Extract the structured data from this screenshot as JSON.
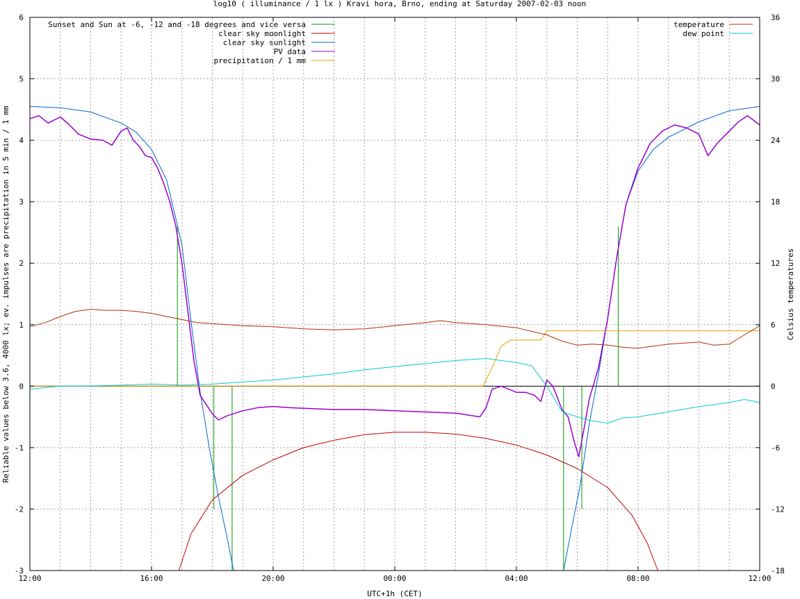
{
  "chart_data": {
    "type": "line",
    "title": "log10 ( illuminance / 1 lx ) Kravi hora, Brno, ending at Saturday 2007-02-03 noon",
    "xlabel": "UTC+1h (CET)",
    "ylabel": "Reliable values below 3.6, 4000 lx; ev. impulses are precipitation in 5 min / 1 mm",
    "y2label": "Celsius temperatures",
    "x_unit": "hours",
    "xlim": [
      12,
      36
    ],
    "ylim": [
      -3,
      6
    ],
    "y2lim": [
      -18,
      36
    ],
    "x_ticks": [
      {
        "x": 12,
        "label": "12:00"
      },
      {
        "x": 16,
        "label": "16:00"
      },
      {
        "x": 20,
        "label": "20:00"
      },
      {
        "x": 24,
        "label": "00:00"
      },
      {
        "x": 28,
        "label": "04:00"
      },
      {
        "x": 32,
        "label": "08:00"
      },
      {
        "x": 36,
        "label": "12:00"
      }
    ],
    "y_ticks": [
      -3,
      -2,
      -1,
      0,
      1,
      2,
      3,
      4,
      5,
      6
    ],
    "y2_ticks": [
      -18,
      -12,
      -6,
      0,
      6,
      12,
      18,
      24,
      30,
      36
    ],
    "grid": true,
    "legend_left": "top-left",
    "legend_right": "top-right",
    "series": [
      {
        "name": "Sunset and Sun at -6, -12 and -18 degrees and vice versa",
        "color": "#009900",
        "kind": "impulse",
        "axis": "y",
        "points": [
          [
            16.85,
            2.6
          ],
          [
            18.05,
            -2.0
          ],
          [
            18.65,
            -3.0
          ],
          [
            29.55,
            -3.0
          ],
          [
            30.15,
            -2.0
          ],
          [
            30.75,
            0.0
          ],
          [
            31.35,
            2.6
          ]
        ]
      },
      {
        "name": "clear sky moonlight",
        "color": "#c00000",
        "axis": "y",
        "points": [
          [
            16.9,
            -3.0
          ],
          [
            17.3,
            -2.4
          ],
          [
            18.0,
            -1.85
          ],
          [
            19.0,
            -1.45
          ],
          [
            20.0,
            -1.2
          ],
          [
            21.0,
            -1.0
          ],
          [
            22.0,
            -0.88
          ],
          [
            23.0,
            -0.79
          ],
          [
            24.0,
            -0.75
          ],
          [
            25.0,
            -0.75
          ],
          [
            26.0,
            -0.78
          ],
          [
            27.0,
            -0.85
          ],
          [
            28.0,
            -0.96
          ],
          [
            29.0,
            -1.12
          ],
          [
            30.0,
            -1.34
          ],
          [
            31.0,
            -1.65
          ],
          [
            31.8,
            -2.1
          ],
          [
            32.3,
            -2.55
          ],
          [
            32.65,
            -3.0
          ]
        ]
      },
      {
        "name": "clear sky sunlight",
        "color": "#0066cc",
        "axis": "y",
        "points": [
          [
            12.0,
            4.55
          ],
          [
            13.0,
            4.53
          ],
          [
            14.0,
            4.46
          ],
          [
            15.0,
            4.28
          ],
          [
            15.5,
            4.13
          ],
          [
            16.0,
            3.85
          ],
          [
            16.5,
            3.35
          ],
          [
            17.0,
            2.3
          ],
          [
            17.3,
            1.05
          ],
          [
            17.6,
            -0.1
          ],
          [
            17.9,
            -1.0
          ],
          [
            18.2,
            -1.8
          ],
          [
            18.5,
            -2.5
          ],
          [
            18.7,
            -3.0
          ],
          [
            29.55,
            -3.0
          ],
          [
            29.8,
            -2.35
          ],
          [
            30.1,
            -1.6
          ],
          [
            30.4,
            -0.6
          ],
          [
            30.7,
            0.2
          ],
          [
            31.0,
            1.1
          ],
          [
            31.3,
            2.1
          ],
          [
            31.6,
            2.95
          ],
          [
            32.0,
            3.5
          ],
          [
            32.5,
            3.85
          ],
          [
            33.0,
            4.05
          ],
          [
            34.0,
            4.3
          ],
          [
            35.0,
            4.48
          ],
          [
            36.0,
            4.55
          ]
        ]
      },
      {
        "name": "PV data",
        "color": "#9900cc",
        "axis": "y",
        "points": [
          [
            12.0,
            4.35
          ],
          [
            12.3,
            4.4
          ],
          [
            12.6,
            4.28
          ],
          [
            13.0,
            4.38
          ],
          [
            13.3,
            4.25
          ],
          [
            13.6,
            4.1
          ],
          [
            14.0,
            4.02
          ],
          [
            14.4,
            4.0
          ],
          [
            14.7,
            3.92
          ],
          [
            15.0,
            4.15
          ],
          [
            15.2,
            4.2
          ],
          [
            15.4,
            4.0
          ],
          [
            15.6,
            3.9
          ],
          [
            15.8,
            3.75
          ],
          [
            16.0,
            3.72
          ],
          [
            16.2,
            3.55
          ],
          [
            16.4,
            3.3
          ],
          [
            16.6,
            3.0
          ],
          [
            16.8,
            2.6
          ],
          [
            17.0,
            2.0
          ],
          [
            17.2,
            1.2
          ],
          [
            17.4,
            0.4
          ],
          [
            17.6,
            -0.15
          ],
          [
            17.8,
            -0.3
          ],
          [
            18.0,
            -0.45
          ],
          [
            18.2,
            -0.55
          ],
          [
            18.5,
            -0.48
          ],
          [
            19.0,
            -0.4
          ],
          [
            19.5,
            -0.35
          ],
          [
            20.0,
            -0.33
          ],
          [
            20.5,
            -0.35
          ],
          [
            21.0,
            -0.36
          ],
          [
            22.0,
            -0.38
          ],
          [
            23.0,
            -0.38
          ],
          [
            24.0,
            -0.4
          ],
          [
            25.0,
            -0.42
          ],
          [
            26.0,
            -0.44
          ],
          [
            26.8,
            -0.5
          ],
          [
            27.0,
            -0.35
          ],
          [
            27.2,
            -0.05
          ],
          [
            27.5,
            0.0
          ],
          [
            28.0,
            -0.1
          ],
          [
            28.3,
            -0.1
          ],
          [
            28.6,
            -0.15
          ],
          [
            28.8,
            -0.25
          ],
          [
            29.0,
            0.1
          ],
          [
            29.2,
            0.0
          ],
          [
            29.5,
            -0.38
          ],
          [
            29.7,
            -0.5
          ],
          [
            29.9,
            -0.9
          ],
          [
            30.05,
            -1.15
          ],
          [
            30.2,
            -0.75
          ],
          [
            30.4,
            -0.2
          ],
          [
            30.7,
            0.3
          ],
          [
            31.0,
            1.1
          ],
          [
            31.3,
            2.1
          ],
          [
            31.6,
            2.95
          ],
          [
            32.0,
            3.55
          ],
          [
            32.4,
            3.95
          ],
          [
            32.8,
            4.15
          ],
          [
            33.2,
            4.25
          ],
          [
            33.6,
            4.2
          ],
          [
            34.0,
            4.1
          ],
          [
            34.3,
            3.75
          ],
          [
            34.6,
            3.95
          ],
          [
            35.0,
            4.15
          ],
          [
            35.3,
            4.3
          ],
          [
            35.6,
            4.4
          ],
          [
            36.0,
            4.25
          ]
        ]
      },
      {
        "name": "precipitation / 1 mm",
        "color": "#e6a000",
        "axis": "y",
        "points": [
          [
            12.0,
            0.0
          ],
          [
            26.9,
            0.0
          ],
          [
            27.2,
            0.3
          ],
          [
            27.5,
            0.65
          ],
          [
            27.8,
            0.75
          ],
          [
            28.8,
            0.75
          ],
          [
            29.0,
            0.9
          ],
          [
            36.0,
            0.9
          ]
        ]
      },
      {
        "name": "temperature",
        "color": "#b03000",
        "axis": "y2",
        "points": [
          [
            12.0,
            5.8
          ],
          [
            12.5,
            6.2
          ],
          [
            13.0,
            6.8
          ],
          [
            13.5,
            7.3
          ],
          [
            14.0,
            7.5
          ],
          [
            14.5,
            7.4
          ],
          [
            15.0,
            7.4
          ],
          [
            15.5,
            7.3
          ],
          [
            16.0,
            7.1
          ],
          [
            16.5,
            6.8
          ],
          [
            17.0,
            6.5
          ],
          [
            17.5,
            6.2
          ],
          [
            18.0,
            6.1
          ],
          [
            18.5,
            6.0
          ],
          [
            19.0,
            5.9
          ],
          [
            20.0,
            5.8
          ],
          [
            21.0,
            5.6
          ],
          [
            22.0,
            5.5
          ],
          [
            23.0,
            5.6
          ],
          [
            24.0,
            5.9
          ],
          [
            25.0,
            6.2
          ],
          [
            25.5,
            6.4
          ],
          [
            26.0,
            6.2
          ],
          [
            27.0,
            6.0
          ],
          [
            28.0,
            5.7
          ],
          [
            29.0,
            5.0
          ],
          [
            29.5,
            4.4
          ],
          [
            30.0,
            4.0
          ],
          [
            30.5,
            4.1
          ],
          [
            31.0,
            4.0
          ],
          [
            31.5,
            3.8
          ],
          [
            32.0,
            3.7
          ],
          [
            32.5,
            3.9
          ],
          [
            33.0,
            4.1
          ],
          [
            34.0,
            4.3
          ],
          [
            34.5,
            4.0
          ],
          [
            35.0,
            4.1
          ],
          [
            35.5,
            5.0
          ],
          [
            36.0,
            5.9
          ]
        ]
      },
      {
        "name": "dew point",
        "color": "#00cccc",
        "axis": "y2",
        "points": [
          [
            12.0,
            -0.3
          ],
          [
            13.0,
            0.0
          ],
          [
            14.0,
            0.0
          ],
          [
            15.0,
            0.1
          ],
          [
            16.0,
            0.2
          ],
          [
            17.0,
            0.1
          ],
          [
            18.0,
            0.2
          ],
          [
            19.0,
            0.4
          ],
          [
            20.0,
            0.6
          ],
          [
            21.0,
            0.9
          ],
          [
            22.0,
            1.2
          ],
          [
            23.0,
            1.6
          ],
          [
            24.0,
            1.9
          ],
          [
            25.0,
            2.2
          ],
          [
            26.0,
            2.5
          ],
          [
            27.0,
            2.7
          ],
          [
            28.0,
            2.3
          ],
          [
            28.5,
            2.0
          ],
          [
            29.0,
            0.0
          ],
          [
            29.5,
            -2.5
          ],
          [
            30.0,
            -3.0
          ],
          [
            30.5,
            -3.4
          ],
          [
            31.0,
            -3.6
          ],
          [
            31.5,
            -3.1
          ],
          [
            32.0,
            -3.0
          ],
          [
            33.0,
            -2.5
          ],
          [
            34.0,
            -2.0
          ],
          [
            35.0,
            -1.6
          ],
          [
            35.5,
            -1.3
          ],
          [
            36.0,
            -1.6
          ]
        ]
      }
    ]
  }
}
